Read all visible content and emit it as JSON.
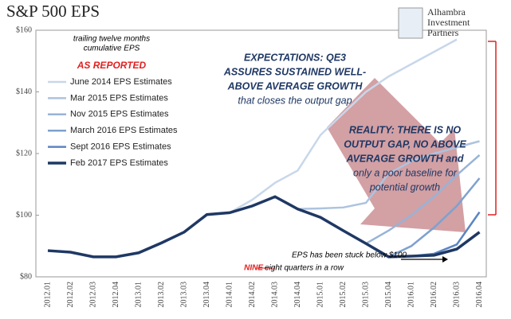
{
  "chart_data": {
    "type": "line",
    "title": "S&P 500 EPS",
    "subtitle": [
      "trailing twelve months",
      "cumulative EPS"
    ],
    "label": "AS REPORTED",
    "logo": [
      "Alhambra",
      "Investment",
      "Partners"
    ],
    "categories": [
      "2012.01",
      "2012.02",
      "2012.03",
      "2012.04",
      "2013.01",
      "2013.02",
      "2013.03",
      "2013.04",
      "2014.01",
      "2014.02",
      "2014.03",
      "2014.04",
      "2015.01",
      "2015.02",
      "2015.03",
      "2015.04",
      "2016.01",
      "2016.02",
      "2016.03",
      "2016.04"
    ],
    "ylim": [
      80,
      160
    ],
    "yticks": [
      {
        "value": 80,
        "label": "$80"
      },
      {
        "value": 100,
        "label": "$100"
      },
      {
        "value": 120,
        "label": "$120"
      },
      {
        "value": 140,
        "label": "$140"
      },
      {
        "value": 160,
        "label": "$160"
      }
    ],
    "series": [
      {
        "name": "June 2014 EPS Estimates",
        "color": "#c8d7ea",
        "values": [
          null,
          null,
          null,
          null,
          null,
          null,
          null,
          null,
          100.8,
          105,
          110.5,
          114.5,
          126,
          133,
          140,
          145,
          149,
          153,
          157,
          null
        ]
      },
      {
        "name": "Mar 2015 EPS Estimates",
        "color": "#adc3df",
        "values": [
          null,
          null,
          null,
          null,
          null,
          null,
          null,
          null,
          null,
          null,
          null,
          102,
          102.2,
          102.5,
          104,
          113.5,
          117.5,
          120,
          122,
          124
        ]
      },
      {
        "name": "Nov 2015 EPS Estimates",
        "color": "#98b3d7",
        "values": [
          null,
          null,
          null,
          null,
          null,
          null,
          null,
          null,
          null,
          null,
          null,
          null,
          null,
          null,
          90.8,
          95,
          100,
          106,
          113,
          119.5
        ]
      },
      {
        "name": "March 2016 EPS Estimates",
        "color": "#7ea1cf",
        "values": [
          null,
          null,
          null,
          null,
          null,
          null,
          null,
          null,
          null,
          null,
          null,
          null,
          null,
          null,
          null,
          86.5,
          90,
          96,
          103,
          112
        ]
      },
      {
        "name": "Sept 2016 EPS Estimates",
        "color": "#5a86c0",
        "values": [
          null,
          null,
          null,
          null,
          null,
          null,
          null,
          null,
          null,
          null,
          null,
          null,
          null,
          null,
          null,
          null,
          86.7,
          87.5,
          90.5,
          101
        ]
      },
      {
        "name": "Feb 2017 EPS Estimates",
        "color": "#1f3864",
        "values": [
          88.5,
          88,
          86.5,
          86.5,
          87.8,
          91,
          94.5,
          100.2,
          100.8,
          103,
          106,
          102,
          99.3,
          95,
          90.8,
          86.5,
          86.7,
          87,
          89,
          94.5
        ]
      }
    ],
    "annotations": {
      "expectations": [
        "EXPECTATIONS: QE3",
        "ASSURES SUSTAINED WELL-",
        "ABOVE AVERAGE GROWTH",
        "that closes the output gap"
      ],
      "reality": [
        "REALITY: THERE IS NO",
        "OUTPUT GAP, NO ABOVE",
        "AVERAGE GROWTH and",
        "only a poor baseline for",
        "potential growth"
      ],
      "stuck": [
        "EPS has been stuck  below $100",
        "eight quarters in a row"
      ],
      "nine": "NINE"
    }
  }
}
